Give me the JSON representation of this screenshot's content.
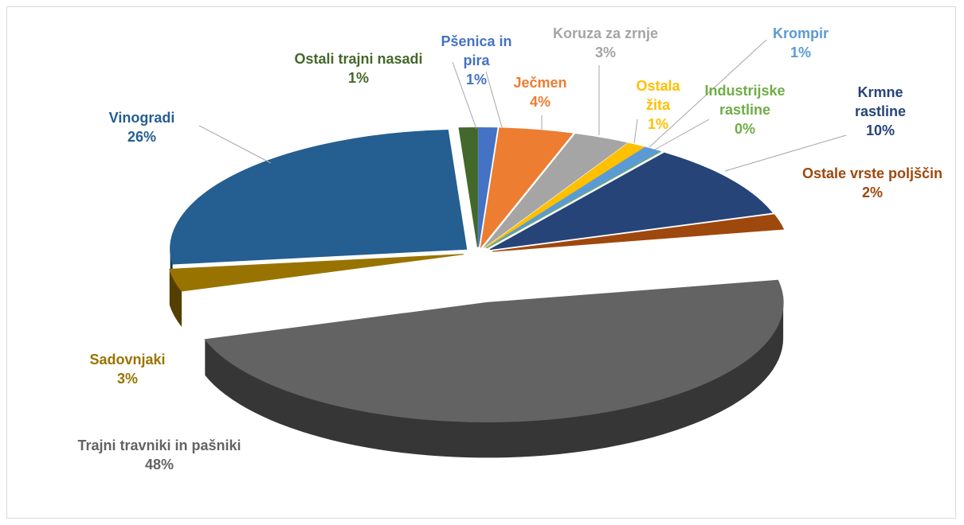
{
  "chart_data": {
    "type": "pie3d",
    "categories": [
      "Pšenica in pira",
      "Ječmen",
      "Koruza za zrnje",
      "Ostala žita",
      "Krompir",
      "Industrijske rastline",
      "Krmne rastline",
      "Ostale vrste poljščin",
      "Trajni travniki in pašniki",
      "Sadovnjaki",
      "Vinogradi",
      "Ostali trajni nasadi"
    ],
    "values": [
      1,
      4,
      3,
      1,
      1,
      0,
      10,
      2,
      48,
      3,
      26,
      1
    ],
    "value_labels": [
      "1%",
      "4%",
      "3%",
      "1%",
      "1%",
      "0%",
      "10%",
      "2%",
      "48%",
      "3%",
      "26%",
      "1%"
    ],
    "colors": [
      "#4472c4",
      "#ed7d31",
      "#a5a5a5",
      "#ffc000",
      "#5b9bd5",
      "#70ad47",
      "#264478",
      "#9e480e",
      "#636363",
      "#997300",
      "#255e91",
      "#43682b"
    ]
  }
}
